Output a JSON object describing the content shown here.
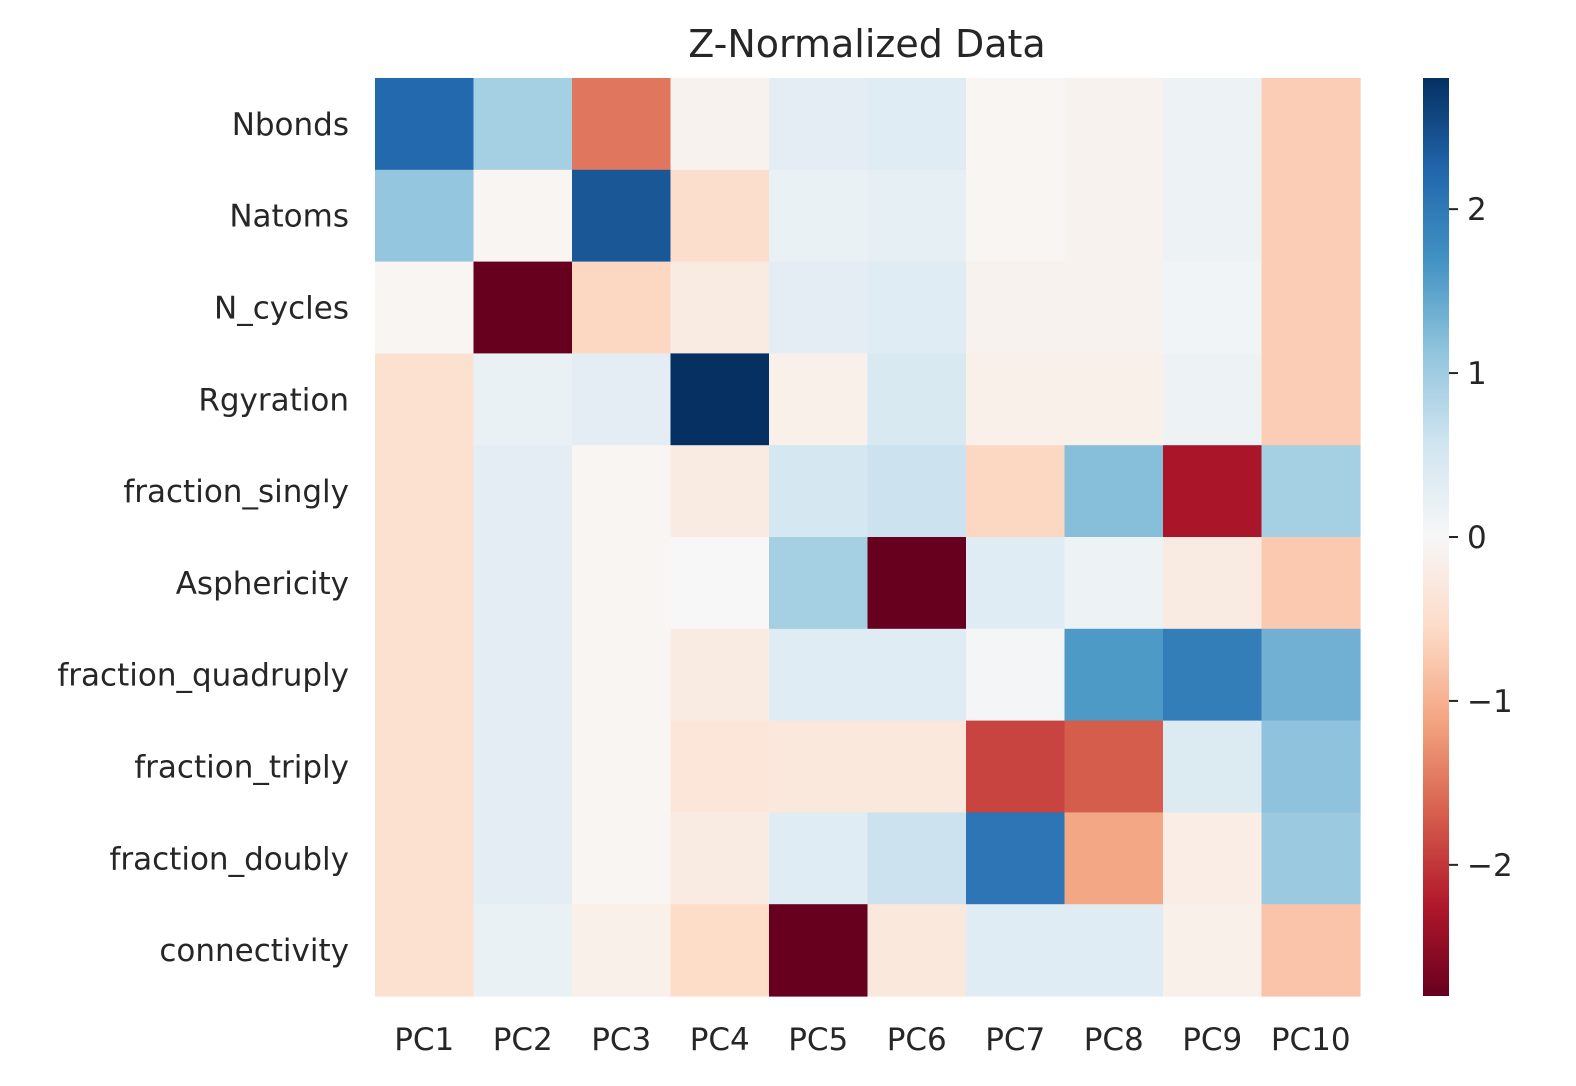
{
  "chart_data": {
    "type": "heatmap",
    "title": "Z-Normalized Data",
    "xlabel": "",
    "ylabel": "",
    "columns": [
      "PC1",
      "PC2",
      "PC3",
      "PC4",
      "PC5",
      "PC6",
      "PC7",
      "PC8",
      "PC9",
      "PC10"
    ],
    "rows": [
      "Nbonds",
      "Natoms",
      "N_cycles",
      "Rgyration",
      "fraction_singly",
      "Asphericity",
      "fraction_quadruply",
      "fraction_triply",
      "fraction_doubly",
      "connectivity"
    ],
    "values": [
      [
        2.2,
        0.95,
        -1.5,
        -0.1,
        0.3,
        0.35,
        -0.05,
        -0.1,
        0.15,
        -0.7
      ],
      [
        1.1,
        -0.05,
        2.4,
        -0.5,
        0.2,
        0.25,
        -0.05,
        -0.1,
        0.15,
        -0.7
      ],
      [
        -0.05,
        -2.8,
        -0.6,
        -0.25,
        0.3,
        0.35,
        -0.1,
        -0.1,
        0.1,
        -0.7
      ],
      [
        -0.45,
        0.2,
        0.3,
        2.8,
        -0.15,
        0.45,
        -0.15,
        -0.15,
        0.15,
        -0.7
      ],
      [
        -0.45,
        0.3,
        -0.05,
        -0.25,
        0.5,
        0.6,
        -0.6,
        1.2,
        -2.3,
        0.95
      ],
      [
        -0.45,
        0.3,
        -0.05,
        0.0,
        0.95,
        -2.8,
        0.35,
        0.15,
        -0.25,
        -0.75
      ],
      [
        -0.45,
        0.3,
        -0.05,
        -0.25,
        0.35,
        0.35,
        0.05,
        1.6,
        1.95,
        1.35
      ],
      [
        -0.45,
        0.3,
        -0.05,
        -0.35,
        -0.3,
        -0.3,
        -1.9,
        -1.7,
        0.4,
        1.15
      ],
      [
        -0.45,
        0.3,
        -0.05,
        -0.25,
        0.35,
        0.6,
        2.05,
        -1.1,
        -0.2,
        1.05
      ],
      [
        -0.45,
        0.2,
        -0.15,
        -0.55,
        -2.8,
        -0.3,
        0.35,
        0.35,
        -0.15,
        -0.8
      ]
    ],
    "colorbar": {
      "min": -2.8,
      "max": 2.8,
      "ticks": [
        -2,
        -1,
        0,
        1,
        2
      ],
      "tick_labels": [
        "−2",
        "−1",
        "0",
        "1",
        "2"
      ]
    },
    "colormap": [
      "#67001f",
      "#b2182b",
      "#d6604d",
      "#f4a582",
      "#fddbc7",
      "#f7f7f7",
      "#d1e5f0",
      "#92c5de",
      "#4393c3",
      "#2166ac",
      "#053061"
    ],
    "grid": false,
    "legend": "none"
  }
}
